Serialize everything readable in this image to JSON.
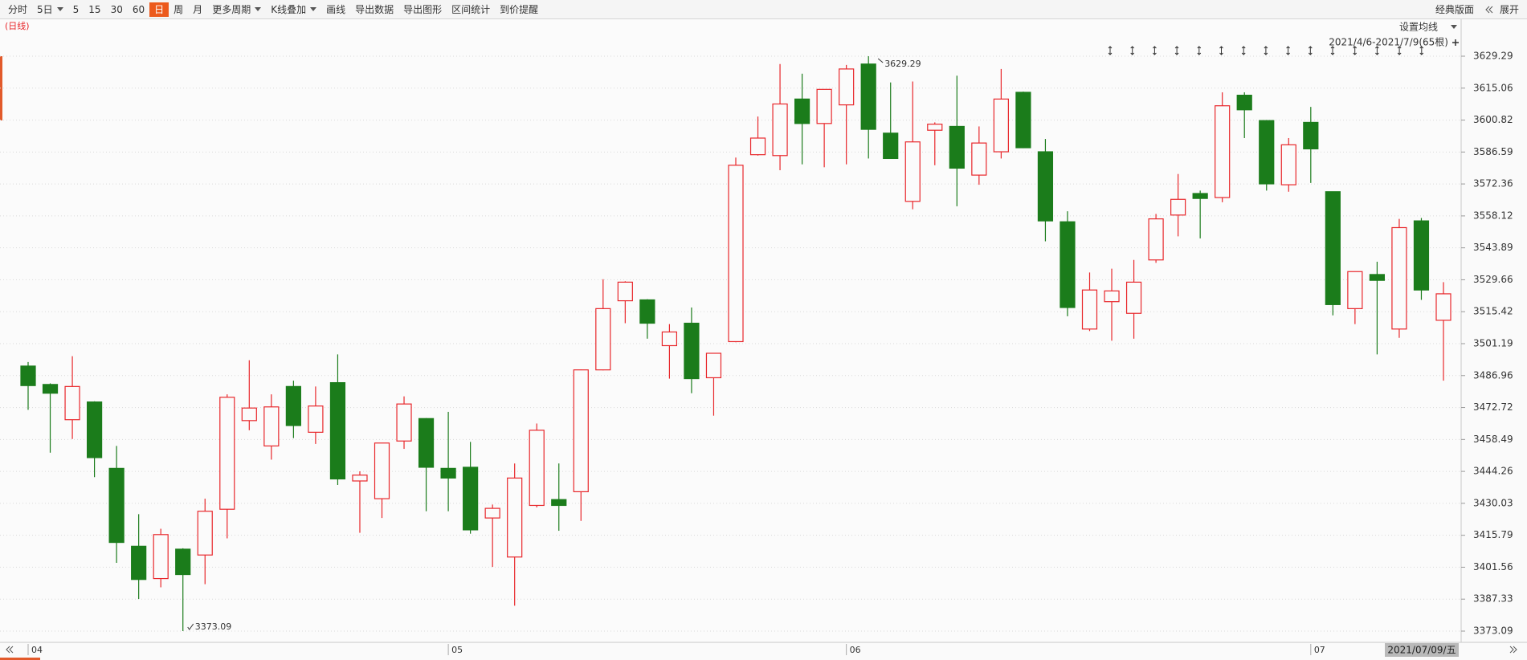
{
  "toolbar": {
    "items": [
      {
        "label": "分时"
      },
      {
        "label": "5日",
        "dropdown": true
      },
      {
        "label": "5"
      },
      {
        "label": "15"
      },
      {
        "label": "30"
      },
      {
        "label": "60"
      },
      {
        "label": "日",
        "selected": true
      },
      {
        "label": "周"
      },
      {
        "label": "月"
      },
      {
        "label": "更多周期",
        "dropdown": true
      },
      {
        "label": "K线叠加",
        "dropdown": true
      },
      {
        "label": "画线"
      },
      {
        "label": "导出数据"
      },
      {
        "label": "导出图形"
      },
      {
        "label": "区间统计"
      },
      {
        "label": "到价提醒"
      }
    ],
    "right": [
      "经典版面",
      "展开"
    ]
  },
  "chart_data": {
    "type": "candlestick",
    "period_label": "(日线)",
    "ma_setting": "设置均线",
    "range_label": "2021/4/6-2021/7/9(65根)",
    "cursor_date": "2021/07/09/五",
    "max_label": 3629.29,
    "min_label": 3373.09,
    "up_color": "#e8272b",
    "down_color": "#1b7c1b",
    "grid": true,
    "categories": [
      "04",
      null,
      null,
      null,
      null,
      null,
      null,
      null,
      null,
      null,
      null,
      null,
      null,
      null,
      null,
      null,
      null,
      null,
      null,
      "05",
      null,
      null,
      null,
      null,
      null,
      null,
      null,
      null,
      null,
      null,
      null,
      null,
      null,
      null,
      null,
      null,
      null,
      "06",
      null,
      null,
      null,
      null,
      null,
      null,
      null,
      null,
      null,
      null,
      null,
      null,
      null,
      null,
      null,
      null,
      null,
      null,
      null,
      null,
      "07",
      null,
      null,
      null,
      null,
      null,
      null
    ],
    "open": [
      3491.2,
      3483.0,
      3467.3,
      3475.2,
      3445.6,
      3410.9,
      3396.5,
      3409.6,
      3407.0,
      3427.4,
      3466.9,
      3455.6,
      3482.1,
      3461.7,
      3483.8,
      3440.0,
      3432.1,
      3457.8,
      3467.8,
      3445.6,
      3446.1,
      3423.5,
      3406.1,
      3429.1,
      3431.7,
      3435.2,
      3489.5,
      3520.3,
      3520.7,
      3500.3,
      3510.3,
      3486.0,
      3502.1,
      3585.4,
      3585.0,
      3610.2,
      3599.3,
      3607.6,
      3625.8,
      3595.0,
      3564.6,
      3596.3,
      3598.0,
      3576.3,
      3586.7,
      3613.2,
      3586.7,
      3555.5,
      3507.7,
      3519.9,
      3514.7,
      3538.5,
      3558.5,
      3568.1,
      3566.3,
      3611.9,
      3600.6,
      3572.0,
      3599.8,
      3568.9,
      3516.8,
      3532.0,
      3507.7,
      3555.9,
      3511.6
    ],
    "high": [
      3493.0,
      3483.5,
      3495.6,
      3475.5,
      3455.6,
      3425.2,
      3418.7,
      3410.0,
      3432.1,
      3478.6,
      3493.8,
      3478.6,
      3484.7,
      3482.1,
      3496.4,
      3444.3,
      3457.0,
      3477.7,
      3468.0,
      3470.8,
      3457.4,
      3429.5,
      3447.8,
      3465.6,
      3447.8,
      3489.7,
      3529.9,
      3529.0,
      3521.0,
      3509.9,
      3517.3,
      3497.0,
      3584.1,
      3602.4,
      3625.8,
      3621.5,
      3614.6,
      3625.4,
      3629.29,
      3617.6,
      3618.0,
      3599.8,
      3620.6,
      3598.0,
      3623.6,
      3613.5,
      3592.4,
      3560.2,
      3532.9,
      3534.6,
      3538.5,
      3559.0,
      3576.8,
      3569.4,
      3613.2,
      3613.2,
      3600.8,
      3592.8,
      3606.7,
      3569.0,
      3533.4,
      3537.7,
      3556.8,
      3557.2,
      3528.6
    ],
    "low": [
      3471.7,
      3452.6,
      3458.7,
      3441.7,
      3403.5,
      3387.4,
      3392.6,
      3373.09,
      3394.0,
      3414.4,
      3462.6,
      3449.5,
      3459.1,
      3456.5,
      3438.2,
      3416.9,
      3423.5,
      3454.3,
      3426.5,
      3426.5,
      3416.5,
      3401.7,
      3384.4,
      3428.2,
      3417.8,
      3422.2,
      3489.3,
      3510.3,
      3503.4,
      3485.6,
      3479.1,
      3469.1,
      3501.8,
      3585.0,
      3578.5,
      3581.1,
      3579.8,
      3581.1,
      3583.7,
      3583.5,
      3561.1,
      3580.7,
      3562.4,
      3572.0,
      3583.7,
      3588.3,
      3546.8,
      3513.4,
      3506.8,
      3502.5,
      3503.4,
      3537.2,
      3549.0,
      3548.1,
      3564.2,
      3592.8,
      3569.4,
      3568.9,
      3572.8,
      3513.8,
      3509.9,
      3496.4,
      3503.8,
      3520.7,
      3484.7
    ],
    "close": [
      3482.5,
      3479.1,
      3482.1,
      3450.4,
      3412.6,
      3396.1,
      3416.1,
      3398.3,
      3426.5,
      3477.3,
      3472.5,
      3473.0,
      3464.7,
      3473.4,
      3440.9,
      3442.6,
      3456.9,
      3474.3,
      3446.1,
      3441.3,
      3418.2,
      3427.8,
      3441.3,
      3462.6,
      3429.1,
      3489.5,
      3516.8,
      3528.6,
      3510.3,
      3506.4,
      3485.6,
      3496.9,
      3580.7,
      3592.8,
      3608.0,
      3599.3,
      3614.5,
      3623.6,
      3596.7,
      3583.7,
      3591.1,
      3599.0,
      3579.4,
      3590.6,
      3610.2,
      3588.5,
      3555.9,
      3517.3,
      3525.1,
      3524.7,
      3528.6,
      3556.8,
      3565.5,
      3565.9,
      3607.2,
      3605.4,
      3572.4,
      3589.8,
      3588.0,
      3518.6,
      3533.3,
      3529.4,
      3552.9,
      3525.1,
      3523.4
    ],
    "ylim": [
      3373.09,
      3629.29
    ],
    "yticks": [
      3373.09,
      3387.33,
      3401.56,
      3415.79,
      3430.03,
      3444.26,
      3458.49,
      3472.72,
      3486.96,
      3501.19,
      3515.42,
      3529.66,
      3543.89,
      3558.12,
      3572.36,
      3586.59,
      3600.82,
      3615.06,
      3629.29
    ]
  }
}
